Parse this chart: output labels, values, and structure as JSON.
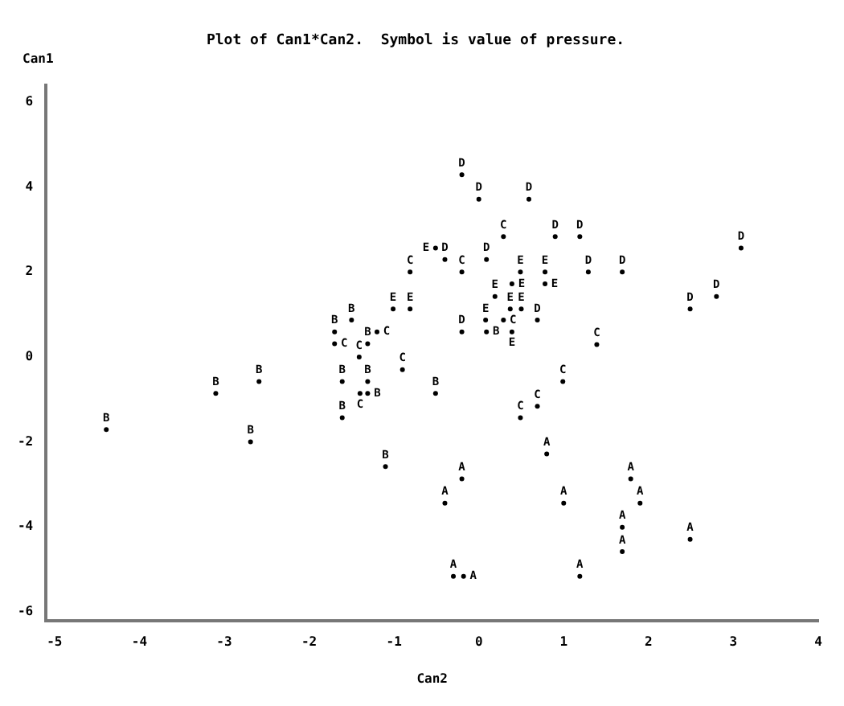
{
  "chart_data": {
    "type": "scatter",
    "title": "Plot of Can1*Can2.  Symbol is value of pressure.",
    "xlabel": "Can2",
    "ylabel": "Can1",
    "xlim": [
      -5.1,
      4
    ],
    "xticks": [
      -5,
      -4,
      -3,
      -2,
      -1,
      0,
      1,
      2,
      3,
      4
    ],
    "ylim": [
      -6.2,
      6.4
    ],
    "yticks": [
      -6,
      -4,
      -2,
      0,
      2,
      4,
      6
    ],
    "grid": false,
    "legend": false,
    "marker": "circle",
    "series": [
      {
        "name": "A",
        "color": "#000000",
        "x": [
          0.8,
          -0.2,
          1.79,
          -0.4,
          1.0,
          1.9,
          1.69,
          2.49,
          1.69,
          -0.3,
          -0.18,
          1.19
        ],
        "values": [
          -2.28,
          -2.87,
          -2.87,
          -3.44,
          -3.44,
          -3.44,
          -4.01,
          -4.29,
          -4.58,
          -5.16,
          -5.16,
          -5.16
        ]
      },
      {
        "name": "B",
        "color": "#000000",
        "x": [
          -1.5,
          -1.7,
          0.09,
          -1.31,
          -2.59,
          -1.61,
          -1.31,
          -3.1,
          -1.31,
          -0.51,
          -1.61,
          -4.39,
          -2.69,
          -1.1
        ],
        "values": [
          0.87,
          0.59,
          0.59,
          0.31,
          -0.58,
          -0.58,
          -0.58,
          -0.86,
          -0.86,
          -0.86,
          -1.43,
          -1.71,
          -2.0,
          -2.58
        ]
      },
      {
        "name": "C",
        "color": "#000000",
        "x": [
          0.29,
          -0.81,
          -0.2,
          0.29,
          -1.2,
          -1.7,
          1.39,
          -1.41,
          -0.9,
          0.99,
          -1.4,
          0.69,
          0.49
        ],
        "values": [
          2.83,
          2.0,
          2.0,
          0.87,
          0.59,
          0.31,
          0.29,
          0.0,
          -0.3,
          -0.58,
          -0.86,
          -1.16,
          -1.43
        ]
      },
      {
        "name": "D",
        "color": "#000000",
        "x": [
          -0.2,
          0.0,
          0.59,
          0.9,
          1.19,
          3.09,
          -0.4,
          0.09,
          1.29,
          1.69,
          2.8,
          2.49,
          0.69,
          -0.2
        ],
        "values": [
          4.29,
          3.71,
          3.71,
          2.83,
          2.83,
          2.56,
          2.29,
          2.29,
          2.0,
          2.0,
          1.42,
          1.13,
          0.87,
          0.59
        ]
      },
      {
        "name": "E",
        "color": "#000000",
        "x": [
          -0.51,
          0.49,
          0.78,
          0.39,
          0.78,
          0.19,
          0.37,
          0.5,
          -1.01,
          -0.81,
          0.08,
          0.39
        ],
        "values": [
          2.56,
          2.0,
          2.0,
          1.72,
          1.72,
          1.42,
          1.13,
          1.13,
          1.13,
          1.13,
          0.87,
          0.59
        ]
      }
    ]
  }
}
